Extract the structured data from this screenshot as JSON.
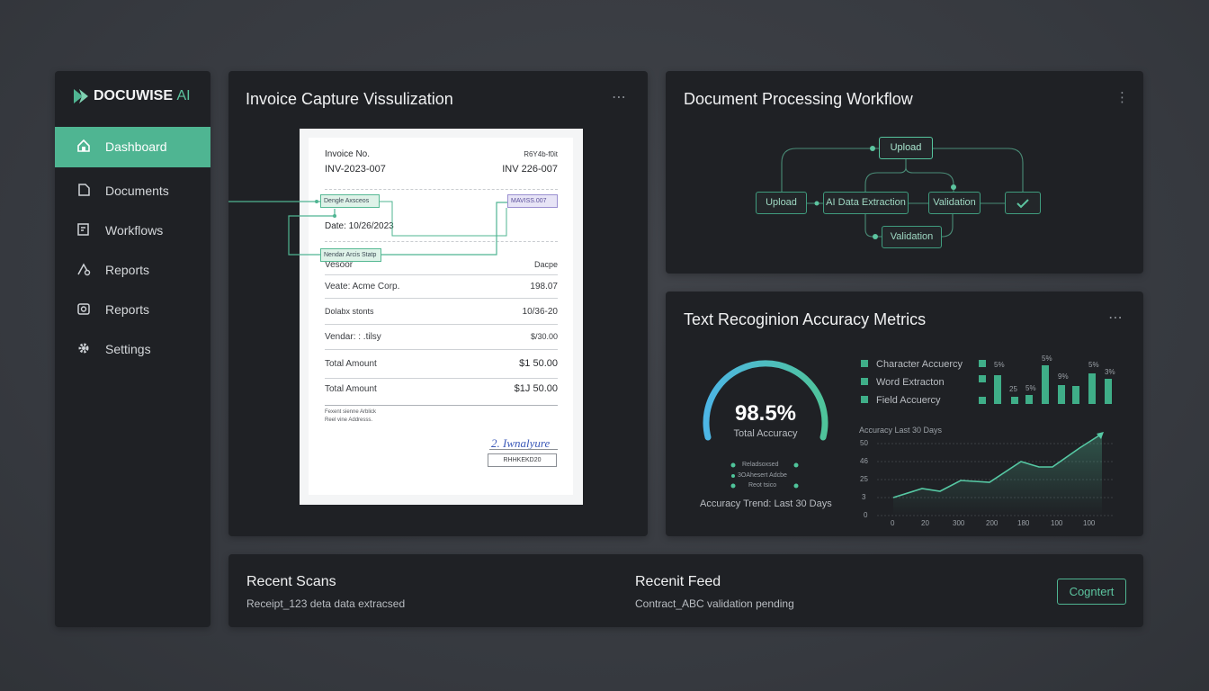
{
  "sidebar": {
    "brand": "DOCUWISE",
    "brand_accent": "AI",
    "nav": [
      "Dashboard",
      "Documents",
      "Workflows",
      "Reports",
      "Reports",
      "Settings"
    ]
  },
  "invoice_panel": {
    "title": "Invoice Capture Vissulization",
    "document": {
      "label_no": "Invoice No.",
      "ref": "R6Y4b-f0it",
      "number": "INV-2023-007",
      "number_right": "INV 226-007",
      "highlight_left": "Dengle Axsceos",
      "highlight_right": "MAVISS.007",
      "date": "Date: 10/26/2023",
      "highlight_vendor": "Nendar Arcis Statp",
      "rows": [
        [
          "Vesoor",
          "Dacpe"
        ],
        [
          "Veate: Acme Corp.",
          "198.07"
        ],
        [
          "Dolabx stonts",
          "10/36-20"
        ],
        [
          "Vendar: : .tilsy",
          "$/30.00"
        ],
        [
          "Total Amount",
          "$1 50.00"
        ],
        [
          "Total Amount",
          "$1J 50.00"
        ]
      ],
      "footnote": [
        "Fexent sienne Arblick",
        "Reel vine Addresss."
      ],
      "signature": "2. Iwnalyure",
      "stamp": "RHHKEKD20"
    }
  },
  "workflow_panel": {
    "title": "Document Processing Workflow",
    "nodes": [
      "Upload",
      "Upload",
      "AI Data Extraction",
      "Validation",
      "Validation"
    ]
  },
  "metrics_panel": {
    "title": "Text Recoginion Accuracy Metrics",
    "gauge_value": "98.5%",
    "gauge_label": "Total Accuracy",
    "gauge_legend": [
      "Reladsoxsed",
      "3OAhesert Adcbe",
      "Reot tsico"
    ],
    "gauge_caption": "Accuracy Trend: Last 30 Days",
    "legend": [
      "Character Accuercy",
      "Word Extracton",
      "Field Accuercy"
    ],
    "bar_labels": [
      "5%",
      "25",
      "5%",
      "5%",
      "9%",
      "5%",
      "3%"
    ],
    "trend_title": "Accuracy  Last 30 Days",
    "trend_yticks": [
      "50",
      "46",
      "25",
      "3",
      "0"
    ],
    "trend_xticks": [
      "0",
      "20",
      "300",
      "200",
      "180",
      "100",
      "100"
    ]
  },
  "bottom_panel": {
    "scans_title": "Recent Scans",
    "scans_text": "Receipt_123 deta data extracsed",
    "feed_title": "Recenit Feed",
    "feed_text": "Contract_ABC validation pending",
    "button": "Cogntert"
  }
}
